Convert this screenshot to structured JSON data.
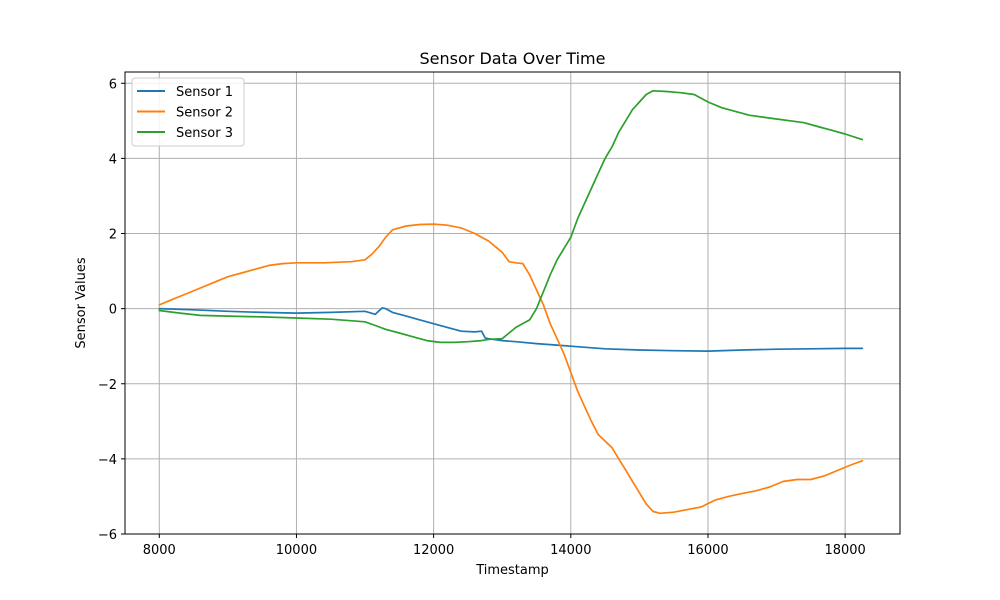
{
  "chart_data": {
    "type": "line",
    "title": "Sensor Data Over Time",
    "xlabel": "Timestamp",
    "ylabel": "Sensor Values",
    "xlim": [
      7500,
      18800
    ],
    "ylim": [
      -6,
      6.3
    ],
    "xticks": [
      8000,
      10000,
      12000,
      14000,
      16000,
      18000
    ],
    "yticks": [
      -6,
      -4,
      -2,
      0,
      2,
      4,
      6
    ],
    "xtick_labels": [
      "8000",
      "10000",
      "12000",
      "14000",
      "16000",
      "18000"
    ],
    "ytick_labels": [
      "−6",
      "−4",
      "−2",
      "0",
      "2",
      "4",
      "6"
    ],
    "grid": true,
    "legend_position": "top-left",
    "series": [
      {
        "name": "Sensor 1",
        "color": "#1f77b4",
        "x": [
          8000,
          8500,
          9000,
          9500,
          10000,
          10500,
          11000,
          11150,
          11250,
          11300,
          11400,
          11600,
          11800,
          12000,
          12200,
          12400,
          12600,
          12700,
          12750,
          12800,
          13000,
          13200,
          13500,
          13800,
          14000,
          14500,
          15000,
          15500,
          16000,
          16500,
          17000,
          17500,
          18000,
          18250
        ],
        "y": [
          0.0,
          -0.03,
          -0.07,
          -0.1,
          -0.12,
          -0.1,
          -0.07,
          -0.15,
          0.02,
          0.0,
          -0.1,
          -0.2,
          -0.3,
          -0.4,
          -0.5,
          -0.6,
          -0.62,
          -0.6,
          -0.78,
          -0.8,
          -0.85,
          -0.88,
          -0.93,
          -0.97,
          -1.0,
          -1.07,
          -1.1,
          -1.12,
          -1.13,
          -1.1,
          -1.08,
          -1.07,
          -1.06,
          -1.06
        ]
      },
      {
        "name": "Sensor 2",
        "color": "#ff7f0e",
        "x": [
          8000,
          8200,
          8400,
          8600,
          8800,
          9000,
          9200,
          9400,
          9600,
          9800,
          10000,
          10400,
          10800,
          11000,
          11100,
          11200,
          11300,
          11400,
          11600,
          11800,
          12000,
          12200,
          12400,
          12600,
          12800,
          12900,
          13000,
          13100,
          13200,
          13300,
          13400,
          13500,
          13600,
          13700,
          13800,
          13900,
          14000,
          14100,
          14200,
          14300,
          14400,
          14600,
          14700,
          14800,
          14900,
          15000,
          15100,
          15200,
          15300,
          15500,
          15700,
          15900,
          16100,
          16300,
          16500,
          16700,
          16900,
          17100,
          17300,
          17500,
          17700,
          17900,
          18100,
          18250
        ],
        "y": [
          0.1,
          0.25,
          0.4,
          0.55,
          0.7,
          0.85,
          0.95,
          1.05,
          1.15,
          1.2,
          1.22,
          1.22,
          1.25,
          1.3,
          1.45,
          1.65,
          1.9,
          2.1,
          2.2,
          2.24,
          2.25,
          2.22,
          2.15,
          2.0,
          1.8,
          1.65,
          1.5,
          1.25,
          1.22,
          1.2,
          0.9,
          0.5,
          0.1,
          -0.4,
          -0.8,
          -1.2,
          -1.7,
          -2.2,
          -2.6,
          -3.0,
          -3.35,
          -3.7,
          -4.0,
          -4.3,
          -4.6,
          -4.9,
          -5.2,
          -5.4,
          -5.45,
          -5.42,
          -5.35,
          -5.28,
          -5.1,
          -5.0,
          -4.92,
          -4.85,
          -4.75,
          -4.6,
          -4.55,
          -4.55,
          -4.45,
          -4.3,
          -4.15,
          -4.05
        ]
      },
      {
        "name": "Sensor 3",
        "color": "#2ca02c",
        "x": [
          8000,
          8300,
          8600,
          9000,
          9500,
          10000,
          10500,
          11000,
          11150,
          11300,
          11500,
          11700,
          11900,
          12100,
          12300,
          12500,
          12700,
          12800,
          13000,
          13100,
          13200,
          13400,
          13500,
          13600,
          13700,
          13800,
          14000,
          14100,
          14200,
          14300,
          14400,
          14500,
          14600,
          14700,
          14800,
          14900,
          15000,
          15100,
          15200,
          15400,
          15600,
          15800,
          16000,
          16200,
          16400,
          16600,
          16800,
          17000,
          17200,
          17400,
          17600,
          17800,
          18000,
          18250
        ],
        "y": [
          -0.05,
          -0.12,
          -0.18,
          -0.2,
          -0.22,
          -0.25,
          -0.28,
          -0.35,
          -0.45,
          -0.55,
          -0.65,
          -0.75,
          -0.85,
          -0.9,
          -0.9,
          -0.88,
          -0.85,
          -0.82,
          -0.8,
          -0.65,
          -0.5,
          -0.3,
          0.0,
          0.45,
          0.9,
          1.3,
          1.9,
          2.4,
          2.8,
          3.2,
          3.6,
          4.0,
          4.3,
          4.7,
          5.0,
          5.3,
          5.5,
          5.7,
          5.8,
          5.78,
          5.75,
          5.7,
          5.5,
          5.35,
          5.25,
          5.15,
          5.1,
          5.05,
          5.0,
          4.95,
          4.85,
          4.75,
          4.65,
          4.5
        ]
      }
    ]
  }
}
